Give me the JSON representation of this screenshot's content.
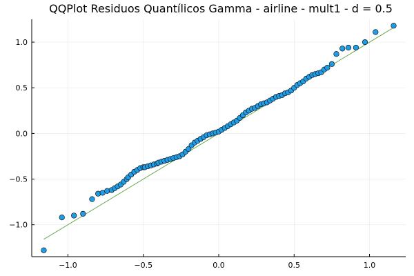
{
  "chart_data": {
    "type": "scatter",
    "title": "QQPlot Residuos Quantílicos Gamma - airline - mult1 - d = 0.5",
    "xlabel": "",
    "ylabel": "",
    "xlim": [
      -1.24,
      1.24
    ],
    "ylim": [
      -1.35,
      1.25
    ],
    "grid": true,
    "legend": "none",
    "x_ticks": [
      -1.0,
      -0.5,
      0.0,
      0.5,
      1.0
    ],
    "x_tick_labels": [
      "−1.0",
      "−0.5",
      "0.0",
      "0.5",
      "1.0"
    ],
    "y_ticks": [
      -1.0,
      -0.5,
      0.0,
      0.5,
      1.0
    ],
    "y_tick_labels": [
      "−1.0",
      "−0.5",
      "0.0",
      "0.5",
      "1.0"
    ],
    "point_color": "#1f9ce4",
    "line_color": "#6aa84f",
    "reference_line": {
      "x": [
        -1.16,
        1.16
      ],
      "y": [
        -1.16,
        1.16
      ]
    },
    "points": {
      "x": [
        -1.16,
        -1.04,
        -0.96,
        -0.9,
        -0.84,
        -0.8,
        -0.77,
        -0.74,
        -0.71,
        -0.69,
        -0.67,
        -0.65,
        -0.63,
        -0.61,
        -0.6,
        -0.58,
        -0.56,
        -0.54,
        -0.52,
        -0.5,
        -0.49,
        -0.47,
        -0.45,
        -0.43,
        -0.41,
        -0.4,
        -0.38,
        -0.36,
        -0.34,
        -0.32,
        -0.3,
        -0.28,
        -0.26,
        -0.24,
        -0.22,
        -0.2,
        -0.18,
        -0.16,
        -0.14,
        -0.12,
        -0.1,
        -0.08,
        -0.06,
        -0.04,
        -0.02,
        0.0,
        0.02,
        0.04,
        0.06,
        0.08,
        0.1,
        0.12,
        0.14,
        0.16,
        0.18,
        0.2,
        0.22,
        0.24,
        0.26,
        0.28,
        0.3,
        0.32,
        0.34,
        0.36,
        0.38,
        0.4,
        0.42,
        0.44,
        0.46,
        0.48,
        0.5,
        0.52,
        0.54,
        0.56,
        0.58,
        0.6,
        0.62,
        0.64,
        0.66,
        0.68,
        0.7,
        0.72,
        0.75,
        0.78,
        0.82,
        0.86,
        0.91,
        0.97,
        1.04,
        1.16
      ],
      "y": [
        -1.28,
        -0.92,
        -0.9,
        -0.88,
        -0.72,
        -0.66,
        -0.65,
        -0.63,
        -0.62,
        -0.6,
        -0.58,
        -0.56,
        -0.53,
        -0.5,
        -0.48,
        -0.45,
        -0.42,
        -0.4,
        -0.38,
        -0.37,
        -0.37,
        -0.36,
        -0.35,
        -0.34,
        -0.33,
        -0.32,
        -0.31,
        -0.3,
        -0.29,
        -0.28,
        -0.27,
        -0.26,
        -0.25,
        -0.23,
        -0.2,
        -0.17,
        -0.13,
        -0.1,
        -0.08,
        -0.06,
        -0.04,
        -0.02,
        -0.01,
        0.0,
        0.01,
        0.02,
        0.04,
        0.06,
        0.08,
        0.1,
        0.12,
        0.14,
        0.17,
        0.2,
        0.23,
        0.25,
        0.27,
        0.28,
        0.3,
        0.32,
        0.33,
        0.34,
        0.36,
        0.38,
        0.4,
        0.41,
        0.42,
        0.44,
        0.45,
        0.47,
        0.5,
        0.53,
        0.55,
        0.57,
        0.6,
        0.62,
        0.64,
        0.65,
        0.66,
        0.67,
        0.7,
        0.72,
        0.76,
        0.87,
        0.93,
        0.94,
        0.94,
        1.0,
        1.11,
        1.18
      ]
    }
  }
}
